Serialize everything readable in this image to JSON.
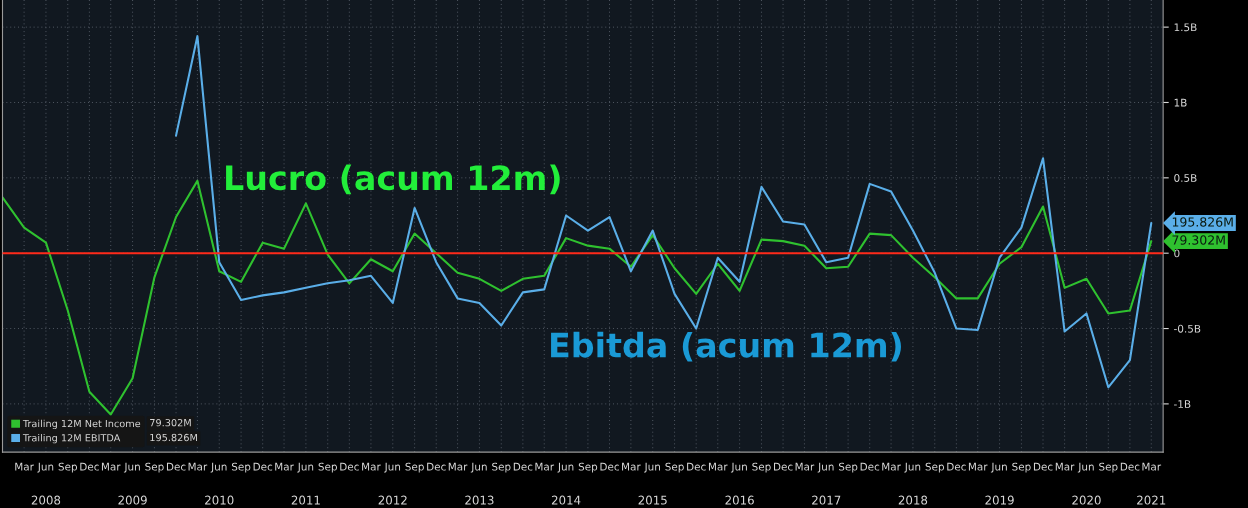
{
  "chart_data": {
    "type": "line",
    "x": [
      "2007-12",
      "2008-03",
      "2008-06",
      "2008-09",
      "2008-12",
      "2009-03",
      "2009-06",
      "2009-09",
      "2009-12",
      "2010-03",
      "2010-06",
      "2010-09",
      "2010-12",
      "2011-03",
      "2011-06",
      "2011-09",
      "2011-12",
      "2012-03",
      "2012-06",
      "2012-09",
      "2012-12",
      "2013-03",
      "2013-06",
      "2013-09",
      "2013-12",
      "2014-03",
      "2014-06",
      "2014-09",
      "2014-12",
      "2015-03",
      "2015-06",
      "2015-09",
      "2015-12",
      "2016-03",
      "2016-06",
      "2016-09",
      "2016-12",
      "2017-03",
      "2017-06",
      "2017-09",
      "2017-12",
      "2018-03",
      "2018-06",
      "2018-09",
      "2018-12",
      "2019-03",
      "2019-06",
      "2019-09",
      "2019-12",
      "2020-03",
      "2020-06",
      "2020-09",
      "2020-12",
      "2021-03"
    ],
    "series": [
      {
        "name": "Trailing 12M Net Income",
        "color": "#2fc12f",
        "values": [
          0.37,
          0.17,
          0.07,
          -0.38,
          -0.92,
          -1.07,
          -0.83,
          -0.16,
          0.24,
          0.48,
          -0.12,
          -0.19,
          0.07,
          0.03,
          0.33,
          -0.01,
          -0.2,
          -0.04,
          -0.12,
          0.13,
          0.0,
          -0.13,
          -0.17,
          -0.25,
          -0.17,
          -0.15,
          0.1,
          0.05,
          0.03,
          -0.09,
          0.12,
          -0.1,
          -0.27,
          -0.07,
          -0.25,
          0.09,
          0.08,
          0.05,
          -0.1,
          -0.09,
          0.13,
          0.12,
          -0.03,
          -0.16,
          -0.3,
          -0.3,
          -0.07,
          0.04,
          0.31,
          -0.23,
          -0.17,
          -0.4,
          -0.38,
          0.08
        ]
      },
      {
        "name": "Trailing 12M EBITDA",
        "color": "#5aaee8",
        "values": [
          null,
          null,
          null,
          null,
          null,
          null,
          null,
          null,
          0.78,
          1.44,
          -0.06,
          -0.31,
          -0.28,
          -0.26,
          -0.23,
          -0.2,
          -0.18,
          -0.15,
          -0.33,
          0.3,
          -0.06,
          -0.3,
          -0.33,
          -0.48,
          -0.26,
          -0.24,
          0.25,
          0.15,
          0.24,
          -0.12,
          0.15,
          -0.27,
          -0.5,
          -0.03,
          -0.19,
          0.44,
          0.21,
          0.19,
          -0.06,
          -0.03,
          0.46,
          0.41,
          0.15,
          -0.13,
          -0.5,
          -0.51,
          -0.03,
          0.17,
          0.63,
          -0.52,
          -0.4,
          -0.89,
          -0.71,
          0.2
        ]
      }
    ],
    "xlim": [
      "2007-12",
      "2021-04-20"
    ],
    "xticks": [
      {
        "value": "2008-03",
        "label": "Mar"
      },
      {
        "value": "2008-06",
        "label": "Jun"
      },
      {
        "value": "2008-09",
        "label": "Sep"
      },
      {
        "value": "2008-12",
        "label": "Dec"
      },
      {
        "value": "2009-03",
        "label": "Mar"
      },
      {
        "value": "2009-06",
        "label": "Jun"
      },
      {
        "value": "2009-09",
        "label": "Sep"
      },
      {
        "value": "2009-12",
        "label": "Dec"
      },
      {
        "value": "2010-03",
        "label": "Mar"
      },
      {
        "value": "2010-06",
        "label": "Jun"
      },
      {
        "value": "2010-09",
        "label": "Sep"
      },
      {
        "value": "2010-12",
        "label": "Dec"
      },
      {
        "value": "2011-03",
        "label": "Mar"
      },
      {
        "value": "2011-06",
        "label": "Jun"
      },
      {
        "value": "2011-09",
        "label": "Sep"
      },
      {
        "value": "2011-12",
        "label": "Dec"
      },
      {
        "value": "2012-03",
        "label": "Mar"
      },
      {
        "value": "2012-06",
        "label": "Jun"
      },
      {
        "value": "2012-09",
        "label": "Sep"
      },
      {
        "value": "2012-12",
        "label": "Dec"
      },
      {
        "value": "2013-03",
        "label": "Mar"
      },
      {
        "value": "2013-06",
        "label": "Jun"
      },
      {
        "value": "2013-09",
        "label": "Sep"
      },
      {
        "value": "2013-12",
        "label": "Dec"
      },
      {
        "value": "2014-03",
        "label": "Mar"
      },
      {
        "value": "2014-06",
        "label": "Jun"
      },
      {
        "value": "2014-09",
        "label": "Sep"
      },
      {
        "value": "2014-12",
        "label": "Dec"
      },
      {
        "value": "2015-03",
        "label": "Mar"
      },
      {
        "value": "2015-06",
        "label": "Jun"
      },
      {
        "value": "2015-09",
        "label": "Sep"
      },
      {
        "value": "2015-12",
        "label": "Dec"
      },
      {
        "value": "2016-03",
        "label": "Mar"
      },
      {
        "value": "2016-06",
        "label": "Jun"
      },
      {
        "value": "2016-09",
        "label": "Sep"
      },
      {
        "value": "2016-12",
        "label": "Dec"
      },
      {
        "value": "2017-03",
        "label": "Mar"
      },
      {
        "value": "2017-06",
        "label": "Jun"
      },
      {
        "value": "2017-09",
        "label": "Sep"
      },
      {
        "value": "2017-12",
        "label": "Dec"
      },
      {
        "value": "2018-03",
        "label": "Mar"
      },
      {
        "value": "2018-06",
        "label": "Jun"
      },
      {
        "value": "2018-09",
        "label": "Sep"
      },
      {
        "value": "2018-12",
        "label": "Dec"
      },
      {
        "value": "2019-03",
        "label": "Mar"
      },
      {
        "value": "2019-06",
        "label": "Jun"
      },
      {
        "value": "2019-09",
        "label": "Sep"
      },
      {
        "value": "2019-12",
        "label": "Dec"
      },
      {
        "value": "2020-03",
        "label": "Mar"
      },
      {
        "value": "2020-06",
        "label": "Jun"
      },
      {
        "value": "2020-09",
        "label": "Sep"
      },
      {
        "value": "2020-12",
        "label": "Dec"
      },
      {
        "value": "2021-03",
        "label": "Mar"
      }
    ],
    "x2lim": [
      "2007-12",
      "2021-04-20"
    ],
    "x2ticks": [
      {
        "value": "2008-06",
        "label": "2008"
      },
      {
        "value": "2009-06",
        "label": "2009"
      },
      {
        "value": "2010-06",
        "label": "2010"
      },
      {
        "value": "2011-06",
        "label": "2011"
      },
      {
        "value": "2012-06",
        "label": "2012"
      },
      {
        "value": "2013-06",
        "label": "2013"
      },
      {
        "value": "2014-06",
        "label": "2014"
      },
      {
        "value": "2015-06",
        "label": "2015"
      },
      {
        "value": "2016-06",
        "label": "2016"
      },
      {
        "value": "2017-06",
        "label": "2017"
      },
      {
        "value": "2018-06",
        "label": "2018"
      },
      {
        "value": "2019-06",
        "label": "2019"
      },
      {
        "value": "2020-06",
        "label": "2020"
      },
      {
        "value": "2021-03",
        "label": "2021"
      }
    ],
    "ylim": [
      -1.32,
      1.68
    ],
    "yticks": [
      {
        "value": -1,
        "label": "-1B"
      },
      {
        "value": -0.5,
        "label": "-0.5B"
      },
      {
        "value": 0,
        "label": "0"
      },
      {
        "value": 0.5,
        "label": "0.5B"
      },
      {
        "value": 1,
        "label": "1B"
      },
      {
        "value": 1.5,
        "label": "1.5B"
      }
    ],
    "ref_lines": [
      {
        "axis": "y",
        "value": 0,
        "color": "#ff2a1a"
      }
    ],
    "annotations": [
      "Lucro (acum 12m)",
      "Ebitda (acum 12m)",
      "79.302M",
      "195.826M"
    ],
    "grid": true,
    "legend": "bottom left",
    "line_style": "solid",
    "marker": "none"
  }
}
